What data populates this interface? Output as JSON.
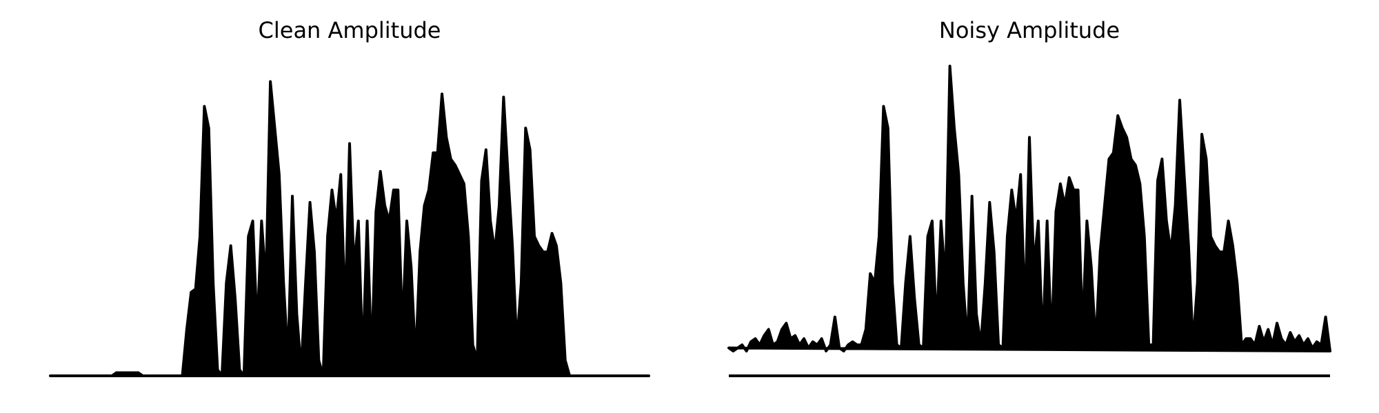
{
  "chart_data": [
    {
      "type": "area",
      "title": "Clean Amplitude",
      "color": "#000000",
      "ylim": [
        0,
        1
      ],
      "values": [
        0,
        0,
        0,
        0,
        0,
        0,
        0,
        0,
        0,
        0,
        0,
        0,
        0,
        0,
        0,
        0.01,
        0.01,
        0.01,
        0.01,
        0.01,
        0.01,
        0,
        0,
        0,
        0,
        0,
        0,
        0,
        0,
        0,
        0,
        0.15,
        0.27,
        0.28,
        0.45,
        0.87,
        0.8,
        0.3,
        0.02,
        0,
        0.3,
        0.42,
        0.25,
        0.02,
        0,
        0.45,
        0.5,
        0.15,
        0.5,
        0.3,
        0.95,
        0.8,
        0.65,
        0.3,
        0.05,
        0.58,
        0.2,
        0.02,
        0.3,
        0.56,
        0.4,
        0.05,
        0,
        0.45,
        0.6,
        0.5,
        0.65,
        0.2,
        0.75,
        0.35,
        0.5,
        0.05,
        0.5,
        0.05,
        0.53,
        0.66,
        0.55,
        0.5,
        0.6,
        0.6,
        0.15,
        0.5,
        0.35,
        0.05,
        0.4,
        0.55,
        0.6,
        0.72,
        0.72,
        0.91,
        0.77,
        0.7,
        0.68,
        0.65,
        0.62,
        0.45,
        0.1,
        0.05,
        0.63,
        0.73,
        0.5,
        0.4,
        0.55,
        0.9,
        0.65,
        0.42,
        0.1,
        0.3,
        0.8,
        0.73,
        0.45,
        0.42,
        0.4,
        0.4,
        0.46,
        0.42,
        0.3,
        0.05,
        0,
        0,
        0,
        0,
        0,
        0,
        0,
        0,
        0,
        0,
        0,
        0,
        0,
        0,
        0,
        0,
        0,
        0,
        0
      ]
    },
    {
      "type": "area",
      "title": "Noisy Amplitude",
      "color": "#000000",
      "ylim": [
        0,
        1
      ],
      "values": [
        0.09,
        0.08,
        0.09,
        0.1,
        0.08,
        0.11,
        0.12,
        0.1,
        0.13,
        0.15,
        0.1,
        0.11,
        0.15,
        0.17,
        0.12,
        0.13,
        0.1,
        0.12,
        0.09,
        0.11,
        0.1,
        0.12,
        0.08,
        0.1,
        0.19,
        0.09,
        0.08,
        0.1,
        0.11,
        0.1,
        0.1,
        0.15,
        0.33,
        0.3,
        0.45,
        0.87,
        0.8,
        0.3,
        0.1,
        0.09,
        0.3,
        0.45,
        0.25,
        0.1,
        0.09,
        0.45,
        0.5,
        0.15,
        0.5,
        0.3,
        1.0,
        0.8,
        0.65,
        0.3,
        0.1,
        0.58,
        0.2,
        0.1,
        0.3,
        0.56,
        0.4,
        0.1,
        0.09,
        0.45,
        0.6,
        0.5,
        0.65,
        0.2,
        0.77,
        0.35,
        0.5,
        0.1,
        0.5,
        0.1,
        0.53,
        0.62,
        0.55,
        0.64,
        0.6,
        0.6,
        0.15,
        0.5,
        0.35,
        0.1,
        0.4,
        0.55,
        0.7,
        0.72,
        0.84,
        0.8,
        0.77,
        0.7,
        0.68,
        0.62,
        0.45,
        0.1,
        0.1,
        0.63,
        0.7,
        0.5,
        0.4,
        0.55,
        0.89,
        0.65,
        0.42,
        0.1,
        0.3,
        0.78,
        0.7,
        0.45,
        0.42,
        0.4,
        0.4,
        0.5,
        0.42,
        0.3,
        0.1,
        0.12,
        0.12,
        0.1,
        0.16,
        0.11,
        0.15,
        0.1,
        0.17,
        0.12,
        0.1,
        0.14,
        0.11,
        0.13,
        0.1,
        0.12,
        0.09,
        0.11,
        0.1,
        0.19,
        0.08
      ]
    }
  ]
}
